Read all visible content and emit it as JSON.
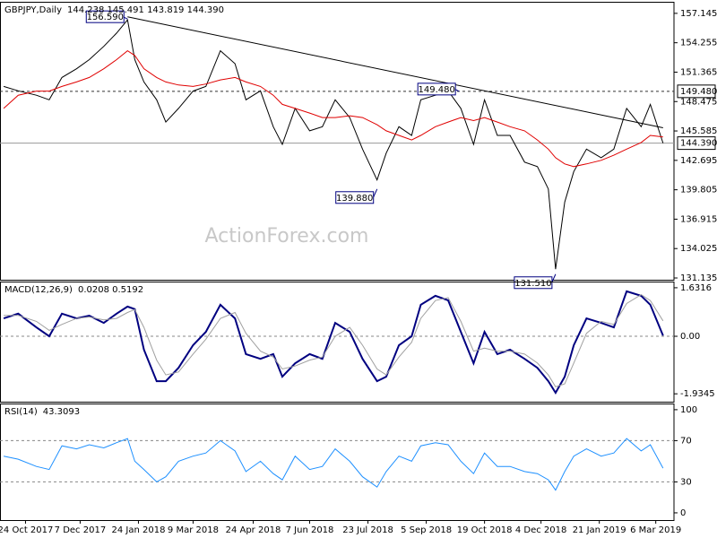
{
  "chart_data": [
    {
      "type": "line",
      "title": "GBPJPY,Daily",
      "readout": "144.238 145.491 143.819 144.390",
      "watermark": "ActionForex.com",
      "xlim": [
        0,
        370
      ],
      "x": [
        2,
        10,
        20,
        27,
        34,
        42,
        49,
        57,
        64,
        70,
        74,
        79,
        86,
        91,
        98,
        106,
        113,
        121,
        129,
        135,
        143,
        150,
        155,
        162,
        170,
        177,
        184,
        192,
        199,
        207,
        212,
        219,
        226,
        231,
        239,
        246,
        253,
        260,
        266,
        273,
        280,
        288,
        295,
        301,
        305,
        310,
        315,
        322,
        330,
        337,
        344,
        352,
        357,
        364
      ],
      "series": [
        {
          "color": "#000000",
          "values": [
            149.96,
            149.53,
            149.1,
            148.65,
            150.84,
            151.7,
            152.6,
            153.9,
            155.2,
            156.5,
            152.6,
            150.4,
            148.65,
            146.46,
            147.8,
            149.5,
            149.96,
            153.47,
            152.2,
            148.65,
            149.53,
            146.0,
            144.27,
            147.8,
            145.6,
            146.0,
            148.65,
            146.9,
            143.8,
            140.77,
            143.4,
            146.0,
            145.15,
            148.65,
            149.1,
            149.53,
            147.8,
            144.27,
            148.65,
            145.15,
            145.15,
            142.52,
            142.08,
            139.89,
            132.0,
            138.6,
            141.6,
            143.8,
            142.95,
            143.8,
            147.8,
            146.0,
            148.2,
            144.39
          ]
        },
        {
          "color": "#e00000",
          "values": [
            147.8,
            149.1,
            149.5,
            149.5,
            149.96,
            150.4,
            150.84,
            151.7,
            152.6,
            153.47,
            153.0,
            151.7,
            150.84,
            150.4,
            150.1,
            149.96,
            150.2,
            150.6,
            150.84,
            150.4,
            149.96,
            149.1,
            148.2,
            147.8,
            147.34,
            146.9,
            146.9,
            147.08,
            146.9,
            146.2,
            145.6,
            145.15,
            144.7,
            145.15,
            146.0,
            146.46,
            146.9,
            146.6,
            146.9,
            146.46,
            146.0,
            145.6,
            144.7,
            143.8,
            142.95,
            142.35,
            142.08,
            142.35,
            142.7,
            143.2,
            143.8,
            144.45,
            145.15,
            145.0
          ]
        }
      ],
      "trendline": {
        "x": [
          70,
          364
        ],
        "values": [
          156.8,
          145.9
        ]
      },
      "annotations": [
        {
          "x": 70,
          "value": {
            "value": 156.59,
            "label": "156.590"
          }
        },
        {
          "x": 252,
          "value": {
            "value": 149.48,
            "label": "149.480"
          }
        },
        {
          "x": 207,
          "value": {
            "value": 139.88,
            "label": "139.880"
          }
        },
        {
          "x": 305,
          "value": {
            "value": 131.51,
            "label": "131.510"
          }
        }
      ],
      "levels": [
        {
          "value": 149.48,
          "label": "149.480",
          "dashed": true
        },
        {
          "value": 144.39,
          "label": "144.390",
          "dashed": false
        }
      ],
      "ylim": [
        130.96,
        158.28
      ],
      "yticks": [
        {
          "value": 157.145,
          "label": "157.145"
        },
        {
          "value": 154.255,
          "label": "154.255"
        },
        {
          "value": 151.365,
          "label": "151.365"
        },
        {
          "value": 148.475,
          "label": "148.475"
        },
        {
          "value": 145.585,
          "label": "145.585"
        },
        {
          "value": 142.695,
          "label": "142.695"
        },
        {
          "value": 139.805,
          "label": "139.805"
        },
        {
          "value": 136.915,
          "label": "136.915"
        },
        {
          "value": 134.025,
          "label": "134.025"
        },
        {
          "value": 131.135,
          "label": "131.135"
        }
      ]
    },
    {
      "type": "line",
      "title": "MACD(12,26,9)",
      "readout": "0.0208 0.5192",
      "xlim": [
        0,
        370
      ],
      "x": [
        2,
        10,
        20,
        27,
        34,
        42,
        49,
        57,
        64,
        70,
        74,
        79,
        86,
        91,
        98,
        106,
        113,
        121,
        129,
        135,
        143,
        150,
        155,
        162,
        170,
        177,
        184,
        192,
        199,
        207,
        212,
        219,
        226,
        231,
        239,
        246,
        253,
        260,
        266,
        273,
        280,
        288,
        295,
        301,
        305,
        310,
        315,
        322,
        330,
        337,
        344,
        352,
        357,
        364
      ],
      "series": [
        {
          "color": "#000080",
          "values": [
            0.6,
            0.76,
            0.3,
            0,
            0.76,
            0.6,
            0.69,
            0.45,
            0.76,
            1.0,
            0.91,
            -0.45,
            -1.51,
            -1.51,
            -1.06,
            -0.3,
            0.15,
            1.06,
            0.6,
            -0.6,
            -0.76,
            -0.6,
            -1.36,
            -0.91,
            -0.6,
            -0.76,
            0.45,
            0.15,
            -0.76,
            -1.51,
            -1.36,
            -0.3,
            0,
            1.06,
            1.36,
            1.21,
            0.15,
            -0.91,
            0.15,
            -0.6,
            -0.45,
            -0.76,
            -1.06,
            -1.51,
            -1.9,
            -1.36,
            -0.3,
            0.6,
            0.45,
            0.3,
            1.51,
            1.36,
            1.06,
            0.0208
          ]
        },
        {
          "color": "#a0a0a0",
          "values": [
            0.7,
            0.7,
            0.5,
            0.2,
            0.4,
            0.6,
            0.65,
            0.55,
            0.6,
            0.8,
            0.9,
            0.3,
            -0.8,
            -1.3,
            -1.2,
            -0.6,
            -0.1,
            0.6,
            0.8,
            0.1,
            -0.5,
            -0.7,
            -1.1,
            -1.0,
            -0.8,
            -0.7,
            0.0,
            0.3,
            -0.3,
            -1.1,
            -1.3,
            -0.7,
            -0.2,
            0.6,
            1.2,
            1.3,
            0.5,
            -0.5,
            -0.4,
            -0.5,
            -0.5,
            -0.6,
            -0.9,
            -1.3,
            -1.7,
            -1.6,
            -0.9,
            0.1,
            0.5,
            0.4,
            1.1,
            1.4,
            1.2,
            0.5192
          ]
        }
      ],
      "ylim": [
        -2.2,
        1.84
      ],
      "yticks": [
        1.6316,
        {
          "value": 0,
          "label": "0.00"
        },
        -1.9345
      ],
      "dashed_levels": [
        0
      ]
    },
    {
      "type": "line",
      "title": "RSI(14)",
      "readout": "43.3093",
      "xlim": [
        0,
        370
      ],
      "x": [
        2,
        10,
        20,
        27,
        34,
        42,
        49,
        57,
        64,
        70,
        74,
        79,
        86,
        91,
        98,
        106,
        113,
        121,
        129,
        135,
        143,
        150,
        155,
        162,
        170,
        177,
        184,
        192,
        199,
        207,
        212,
        219,
        226,
        231,
        239,
        246,
        253,
        260,
        266,
        273,
        280,
        288,
        295,
        301,
        305,
        310,
        315,
        322,
        330,
        337,
        344,
        352,
        357,
        364
      ],
      "series": [
        {
          "color": "#1e90ff",
          "values": [
            55,
            52,
            45,
            42,
            65,
            62,
            66,
            63,
            68,
            72,
            50,
            42,
            30,
            35,
            50,
            55,
            58,
            70,
            60,
            40,
            50,
            38,
            32,
            55,
            42,
            45,
            62,
            50,
            35,
            25,
            40,
            55,
            50,
            65,
            68,
            66,
            50,
            38,
            58,
            45,
            45,
            40,
            38,
            32,
            22,
            40,
            55,
            62,
            55,
            58,
            72,
            60,
            66,
            43.3093
          ]
        }
      ],
      "ylim": [
        -7,
        106
      ],
      "yticks": [
        100,
        70,
        30,
        0
      ],
      "dashed_levels": [
        70,
        30
      ],
      "xticks": [
        {
          "value": 14,
          "label": "24 Oct 2017"
        },
        {
          "value": 44,
          "label": "7 Dec 2017"
        },
        {
          "value": 76,
          "label": "24 Jan 2018"
        },
        {
          "value": 106,
          "label": "9 Mar 2018"
        },
        {
          "value": 139,
          "label": "24 Apr 2018"
        },
        {
          "value": 170,
          "label": "7 Jun 2018"
        },
        {
          "value": 202,
          "label": "23 Jul 2018"
        },
        {
          "value": 234,
          "label": "5 Sep 2018"
        },
        {
          "value": 266,
          "label": "19 Oct 2018"
        },
        {
          "value": 297,
          "label": "4 Dec 2018"
        },
        {
          "value": 329,
          "label": "21 Jan 2019"
        },
        {
          "value": 360,
          "label": "6 Mar 2019"
        }
      ]
    }
  ]
}
